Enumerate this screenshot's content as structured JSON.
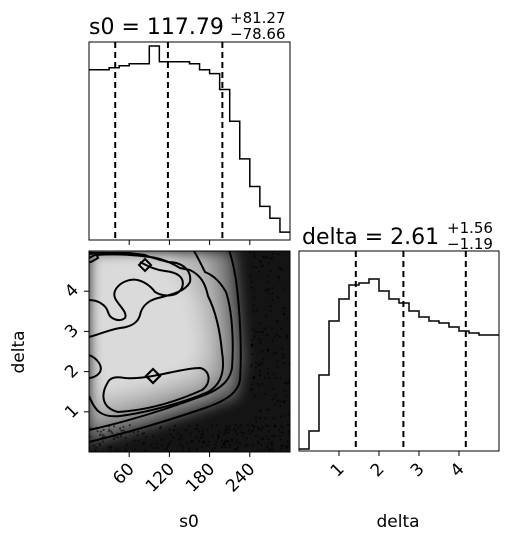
{
  "chart_data": {
    "type": "corner",
    "panels": [
      {
        "id": "s0-hist",
        "type": "histogram",
        "title_main": "s0 = 117.79",
        "title_sup": "+81.27",
        "title_sub": "−78.66",
        "xlim": [
          0,
          300
        ],
        "bins": [
          0,
          15,
          30,
          45,
          60,
          75,
          90,
          105,
          120,
          135,
          150,
          165,
          180,
          195,
          210,
          225,
          240,
          255,
          270,
          285,
          300
        ],
        "counts": [
          0.86,
          0.86,
          0.87,
          0.88,
          0.89,
          0.89,
          0.98,
          0.9,
          0.9,
          0.9,
          0.89,
          0.86,
          0.84,
          0.76,
          0.6,
          0.41,
          0.27,
          0.17,
          0.11,
          0.04
        ],
        "quantiles": [
          39.13,
          117.79,
          199.06
        ]
      },
      {
        "id": "delta-hist",
        "type": "histogram",
        "title_main": "delta = 2.61",
        "title_sup": "+1.56",
        "title_sub": "−1.19",
        "xlim": [
          0,
          5
        ],
        "xticks": [
          1,
          2,
          3,
          4
        ],
        "bins": [
          0,
          0.25,
          0.5,
          0.75,
          1.0,
          1.25,
          1.5,
          1.75,
          2.0,
          2.25,
          2.5,
          2.75,
          3.0,
          3.25,
          3.5,
          3.75,
          4.0,
          4.25,
          4.5,
          4.75,
          5.0
        ],
        "counts": [
          0.01,
          0.1,
          0.38,
          0.65,
          0.76,
          0.83,
          0.84,
          0.86,
          0.8,
          0.76,
          0.74,
          0.7,
          0.67,
          0.65,
          0.64,
          0.62,
          0.6,
          0.59,
          0.58,
          0.58
        ],
        "quantiles": [
          1.42,
          2.61,
          4.17
        ]
      },
      {
        "id": "s0-delta-2d",
        "type": "density2d",
        "xlabel": "s0",
        "ylabel": "delta",
        "xlim": [
          0,
          300
        ],
        "ylim": [
          0,
          5
        ],
        "xticks": [
          60,
          120,
          180,
          240
        ],
        "yticks": [
          1,
          2,
          3,
          4
        ],
        "peak": [
          95,
          2.0
        ],
        "contour_levels": [
          "0.5",
          "1",
          "1.5",
          "2 sigma"
        ]
      }
    ]
  }
}
